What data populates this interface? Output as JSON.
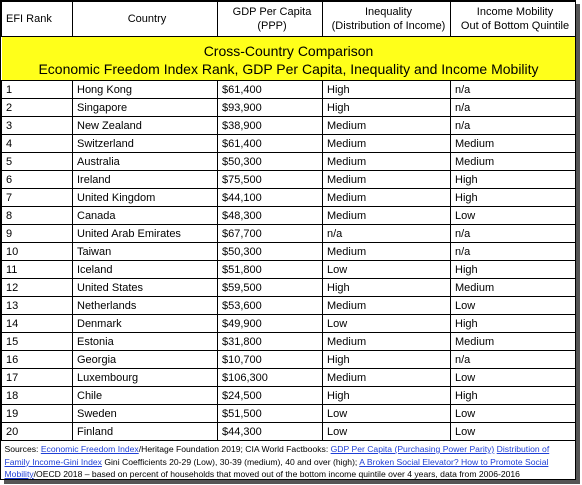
{
  "title": {
    "line1": "Cross-Country Comparison",
    "line2": "Economic Freedom Index Rank, GDP Per Capita, Inequality and Income Mobility"
  },
  "headers": {
    "rank": "EFI Rank",
    "country": "Country",
    "gdp_l1": "GDP Per Capita",
    "gdp_l2": "(PPP)",
    "ineq_l1": "Inequality",
    "ineq_l2": "(Distribution of Income)",
    "mob_l1": "Income Mobility",
    "mob_l2": "Out of Bottom Quintile"
  },
  "rows": [
    {
      "rank": "1",
      "country": "Hong Kong",
      "gdp": "$61,400",
      "inequality": "High",
      "mobility": "n/a"
    },
    {
      "rank": "2",
      "country": "Singapore",
      "gdp": "$93,900",
      "inequality": "High",
      "mobility": "n/a"
    },
    {
      "rank": "3",
      "country": "New Zealand",
      "gdp": "$38,900",
      "inequality": "Medium",
      "mobility": "n/a"
    },
    {
      "rank": "4",
      "country": "Switzerland",
      "gdp": "$61,400",
      "inequality": "Medium",
      "mobility": "Medium"
    },
    {
      "rank": "5",
      "country": "Australia",
      "gdp": "$50,300",
      "inequality": "Medium",
      "mobility": "Medium"
    },
    {
      "rank": "6",
      "country": "Ireland",
      "gdp": "$75,500",
      "inequality": "Medium",
      "mobility": "High"
    },
    {
      "rank": "7",
      "country": "United Kingdom",
      "gdp": "$44,100",
      "inequality": "Medium",
      "mobility": "High"
    },
    {
      "rank": "8",
      "country": "Canada",
      "gdp": "$48,300",
      "inequality": "Medium",
      "mobility": "Low"
    },
    {
      "rank": "9",
      "country": "United Arab Emirates",
      "gdp": "$67,700",
      "inequality": "n/a",
      "mobility": "n/a"
    },
    {
      "rank": "10",
      "country": "Taiwan",
      "gdp": "$50,300",
      "inequality": "Medium",
      "mobility": "n/a"
    },
    {
      "rank": "11",
      "country": "Iceland",
      "gdp": "$51,800",
      "inequality": "Low",
      "mobility": "High"
    },
    {
      "rank": "12",
      "country": "United States",
      "gdp": "$59,500",
      "inequality": "High",
      "mobility": "Medium"
    },
    {
      "rank": "13",
      "country": "Netherlands",
      "gdp": "$53,600",
      "inequality": "Medium",
      "mobility": "Low"
    },
    {
      "rank": "14",
      "country": "Denmark",
      "gdp": "$49,900",
      "inequality": "Low",
      "mobility": "High"
    },
    {
      "rank": "15",
      "country": "Estonia",
      "gdp": "$31,800",
      "inequality": "Medium",
      "mobility": "Medium"
    },
    {
      "rank": "16",
      "country": "Georgia",
      "gdp": "$10,700",
      "inequality": "High",
      "mobility": "n/a"
    },
    {
      "rank": "17",
      "country": "Luxembourg",
      "gdp": "$106,300",
      "inequality": "Medium",
      "mobility": "Low"
    },
    {
      "rank": "18",
      "country": "Chile",
      "gdp": "$24,500",
      "inequality": "High",
      "mobility": "High"
    },
    {
      "rank": "19",
      "country": "Sweden",
      "gdp": "$51,500",
      "inequality": "Low",
      "mobility": "Low"
    },
    {
      "rank": "20",
      "country": "Finland",
      "gdp": "$44,300",
      "inequality": "Low",
      "mobility": "Low"
    }
  ],
  "sources": {
    "prefix": "Sources: ",
    "link1": "Economic Freedom Index",
    "text1": "/Heritage Foundation 2019; CIA World Factbooks: ",
    "link2": "GDP Per Capita (Purchasing Power Parity)",
    "text2": "  ",
    "link3": "Distribution of Family Income-Gini Index",
    "text3": "  Gini Coefficients 20-29 (Low), 30-39 (medium), 40 and over (high);  ",
    "link4": "A Broken Social Elevator? How to Promote Social Mobility",
    "text4": "/OECD 2018 – based on percent of households that moved out of the bottom income quintile over 4 years, data from 2006-2016"
  },
  "colors": {
    "title_bg": "#ffff1a",
    "link": "#1f3fd6",
    "border": "#000000"
  }
}
